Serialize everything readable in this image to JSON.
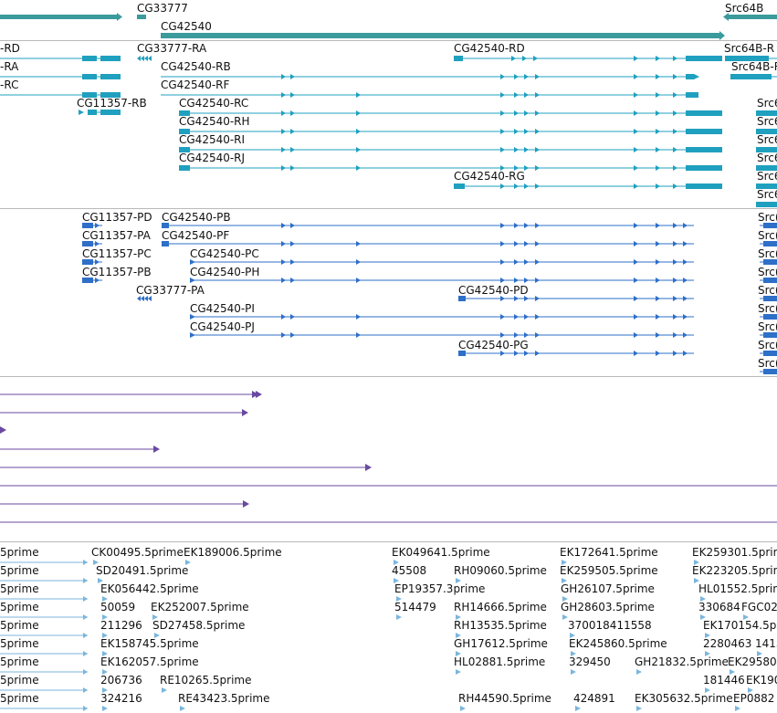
{
  "colors": {
    "gene": "#3b9a9c",
    "transcript": "#1fa0bf",
    "protein": "#2e6fc8",
    "purple": "#6a4aa0",
    "est": "#7ab6dc",
    "divider": "#b9b9b9"
  },
  "gene_track": {
    "labels": [
      "CG33777",
      "CG42540",
      "Src64B"
    ]
  },
  "transcript_track": {
    "labels": [
      "-RD",
      "-RA",
      "-RC",
      "CG11357-RB",
      "CG33777-RA",
      "CG42540-RB",
      "CG42540-RF",
      "CG42540-RC",
      "CG42540-RH",
      "CG42540-RI",
      "CG42540-RJ",
      "CG42540-RD",
      "CG42540-RG",
      "Src64B-R",
      "Src64B-R",
      "Src6",
      "Src6",
      "Src6",
      "Src6",
      "Src6",
      "Src6"
    ]
  },
  "protein_track": {
    "labels": [
      "CG11357-PD",
      "CG11357-PA",
      "CG11357-PC",
      "CG11357-PB",
      "CG42540-PB",
      "CG42540-PF",
      "CG42540-PC",
      "CG42540-PH",
      "CG33777-PA",
      "CG42540-PD",
      "CG42540-PI",
      "CG42540-PJ",
      "CG42540-PG",
      "Src(",
      "Src(",
      "Src(",
      "Src(",
      "Src(",
      "Src(",
      "Src(",
      "Src(",
      "Src("
    ]
  },
  "est_track": {
    "labels": [
      "5prime",
      "CK00495.5prime",
      "EK189006.5prime",
      "EK049641.5prime",
      "EK172641.5prime",
      "EK259301.5prime",
      "5prime",
      "SD20491.5prime",
      "45508",
      "RH09060.5prime",
      "EK259505.5prime",
      "EK223205.5prime",
      "5prime",
      "EK056442.5prime",
      "EP19357.3prime",
      "GH26107.5prime",
      "HL01552.5prime",
      "5prime",
      "50059",
      "EK252007.5prime",
      "514479",
      "RH14666.5prime",
      "GH28603.5prime",
      "330684",
      "FGC02",
      "5prime",
      "211296",
      "SD27458.5prime",
      "RH13535.5prime",
      "370018411558",
      "EK170154.5p",
      "5prime",
      "EK158745.5prime",
      "GH17612.5prime",
      "EK245860.5prime",
      "2280463",
      "1413",
      "5prime",
      "EK162057.5prime",
      "HL02881.5prime",
      "329450",
      "GH21832.5prime",
      "EK29580",
      "5prime",
      "206736",
      "RE10265.5prime",
      "181446",
      "EK190",
      "5prime",
      "324216",
      "RE43423.5prime",
      "RH44590.5prime",
      "424891",
      "EK305632.5prime",
      "EP0882"
    ]
  }
}
